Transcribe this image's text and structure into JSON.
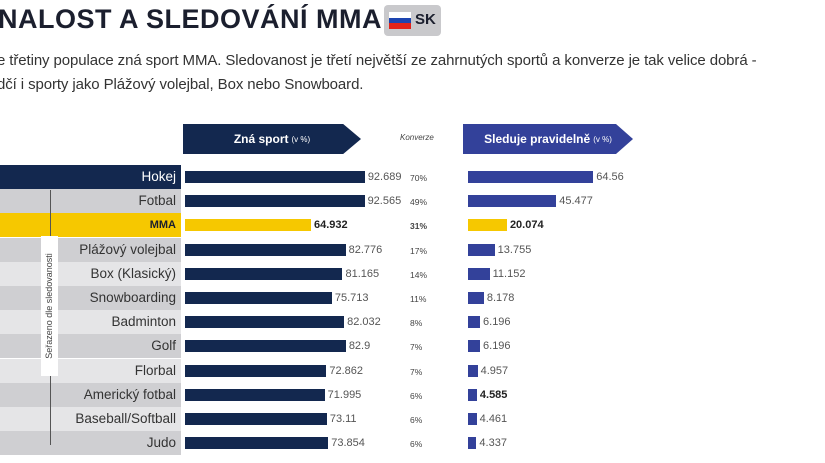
{
  "header": {
    "title": "NALOST A SLEDOVÁNÍ MMA",
    "country_code": "SK",
    "flag_icon": "slovakia-flag-icon"
  },
  "subtitle": [
    "e třetiny populace zná sport MMA. Sledovanost je třetí největší ze zahrnutých sportů a konverze je tak velice dobrá -",
    "dčí i sporty jako Plážový volejbal, Box nebo Snowboard."
  ],
  "colors": {
    "known": "#13284f",
    "follows": "#33419a",
    "highlight": "#f6c800",
    "band_dark": "#cfcfd2",
    "band_light": "#e5e5e7"
  },
  "chart_data": {
    "type": "bar",
    "orientation": "horizontal",
    "sort_note": "Seřazeno dle sledovanosti",
    "conversion_label": "Konverze",
    "highlight": "MMA",
    "categories": [
      "Hokej",
      "Fotbal",
      "MMA",
      "Plážový volejbal",
      "Box (Klasický)",
      "Snowboarding",
      "Badminton",
      "Golf",
      "Florbal",
      "Americký fotbal",
      "Baseball/Softball",
      "Judo"
    ],
    "series": [
      {
        "name": "Zná sport",
        "unit": "(v %)",
        "values": [
          92.689,
          92.565,
          64.932,
          82.776,
          81.165,
          75.713,
          82.032,
          82.9,
          72.862,
          71.995,
          73.11,
          73.854
        ]
      },
      {
        "name": "Sleduje pravidelně",
        "unit": "(v %)",
        "values": [
          64.56,
          45.477,
          20.074,
          13.755,
          11.152,
          8.178,
          6.196,
          6.196,
          4.957,
          4.585,
          4.461,
          4.337
        ]
      }
    ],
    "conversion": [
      "70%",
      "49%",
      "31%",
      "17%",
      "14%",
      "11%",
      "8%",
      "7%",
      "7%",
      "6%",
      "6%",
      "6%"
    ],
    "bold_labels": [
      "MMA",
      "Americký fotbal"
    ]
  }
}
